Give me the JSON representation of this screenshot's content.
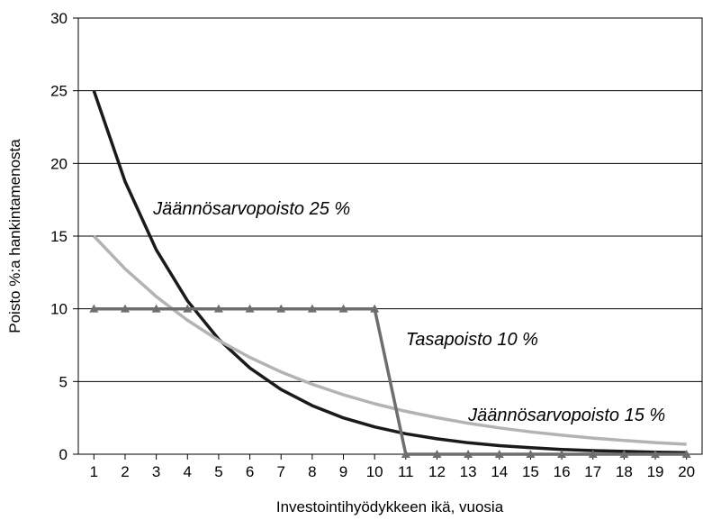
{
  "chart_data": {
    "type": "line",
    "title": "",
    "xlabel": "Investointihyödykkeen ikä, vuosia",
    "ylabel": "Poisto %:a hankintamenosta",
    "x": [
      1,
      2,
      3,
      4,
      5,
      6,
      7,
      8,
      9,
      10,
      11,
      12,
      13,
      14,
      15,
      16,
      17,
      18,
      19,
      20
    ],
    "xlim": [
      0.5,
      20.5
    ],
    "ylim": [
      0,
      30
    ],
    "yticks": [
      0,
      5,
      10,
      15,
      20,
      25,
      30
    ],
    "grid": "horizontal",
    "legend": "none",
    "series": [
      {
        "name": "Jäännösarvopoisto 25 %",
        "color": "#1a1a1a",
        "marker": "none",
        "values": [
          25,
          18.75,
          14.06,
          10.55,
          7.91,
          5.93,
          4.45,
          3.34,
          2.5,
          1.88,
          1.41,
          1.06,
          0.79,
          0.59,
          0.45,
          0.33,
          0.25,
          0.19,
          0.14,
          0.11
        ]
      },
      {
        "name": "Jäännösarvopoisto 15 %",
        "color": "#b3b3b3",
        "marker": "none",
        "values": [
          15,
          12.75,
          10.84,
          9.21,
          7.83,
          6.66,
          5.66,
          4.81,
          4.09,
          3.47,
          2.95,
          2.51,
          2.13,
          1.81,
          1.54,
          1.31,
          1.11,
          0.95,
          0.8,
          0.68
        ]
      },
      {
        "name": "Tasapoisto 10 %",
        "color": "#6e6e6e",
        "marker": "triangle",
        "values": [
          10,
          10,
          10,
          10,
          10,
          10,
          10,
          10,
          10,
          10,
          0,
          0,
          0,
          0,
          0,
          0,
          0,
          0,
          0,
          0
        ]
      }
    ],
    "annotations": [
      {
        "text": "Jäännösarvopoisto 25 %",
        "x": 2.9,
        "y": 16.5
      },
      {
        "text": "Tasapoisto 10 %",
        "x": 11.0,
        "y": 7.5
      },
      {
        "text": "Jäännösarvopoisto 15 %",
        "x": 13.0,
        "y": 2.3
      }
    ]
  }
}
